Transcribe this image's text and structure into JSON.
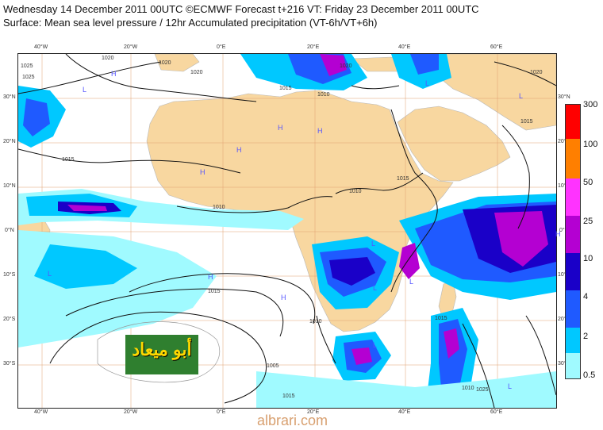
{
  "header": {
    "line1": "Wednesday 14 December 2011 00UTC ©ECMWF Forecast t+216 VT: Friday 23 December 2011 00UTC",
    "line2": "Surface: Mean sea level pressure / 12hr Accumulated precipitation (VT-6h/VT+6h)"
  },
  "longitude_labels": [
    "40°W",
    "20°W",
    "0°E",
    "20°E",
    "40°E",
    "60°E"
  ],
  "latitude_labels": [
    "30°N",
    "20°N",
    "10°N",
    "0°N",
    "10°S",
    "20°S",
    "30°S"
  ],
  "isobar_labels": [
    "1025",
    "1020",
    "1020",
    "1020",
    "1015",
    "1015",
    "1010",
    "1010",
    "1010",
    "1010",
    "1015",
    "1015",
    "1015",
    "1015",
    "1020",
    "1025",
    "1005",
    "1020",
    "1015",
    "1010",
    "1025"
  ],
  "pressure_centers": [
    "H",
    "H",
    "H",
    "H",
    "H",
    "H",
    "H",
    "H",
    "L",
    "L",
    "L",
    "L",
    "L",
    "L",
    "L",
    "L",
    "L"
  ],
  "colorbar": {
    "labels": [
      "300",
      "100",
      "50",
      "25",
      "10",
      "4",
      "2",
      "0.5"
    ],
    "colors": [
      "#ff0000",
      "#ff7f00",
      "#ff33ff",
      "#b400d2",
      "#1a00c8",
      "#1f5aff",
      "#00c8ff",
      "#a0faff"
    ]
  },
  "palette": {
    "land": "#f8d7a0",
    "sea": "#ffffff",
    "grid": "#e0a070",
    "isobar": "#111111",
    "coast": "#bbbbbb"
  },
  "watermark": {
    "text": "أبو ميعاد"
  },
  "site": {
    "text": "albrari.com"
  }
}
